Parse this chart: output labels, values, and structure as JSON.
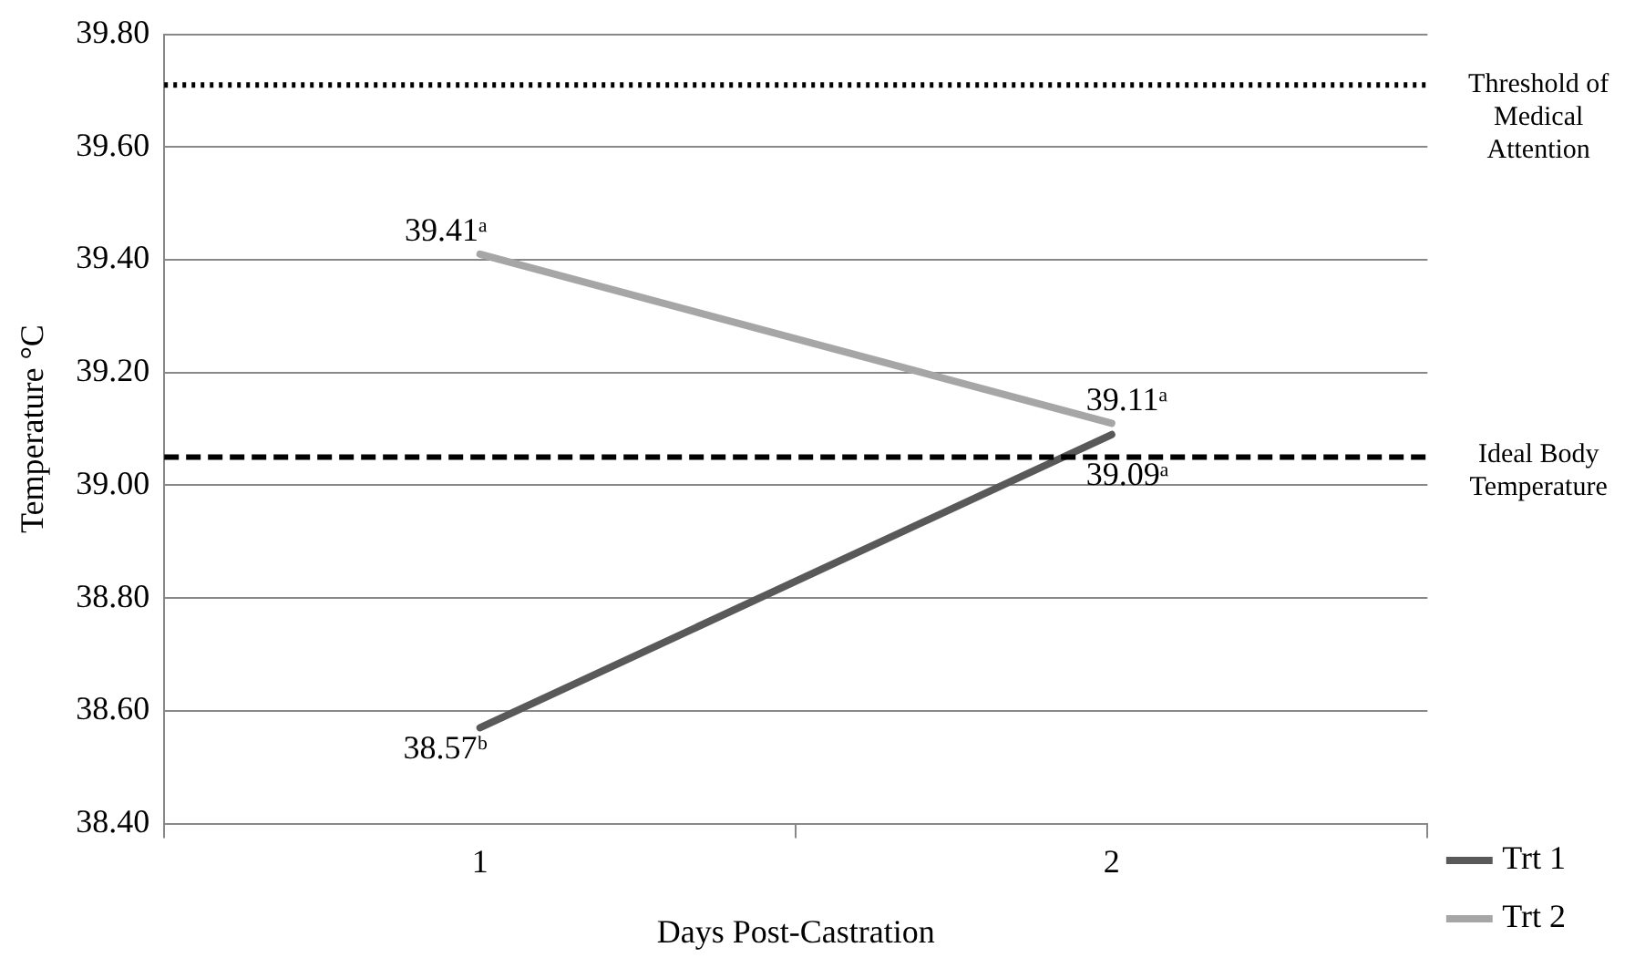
{
  "chart_data": {
    "type": "line",
    "xlabel": "Days Post-Castration",
    "ylabel": "Temperature °C",
    "categories": [
      "1",
      "2"
    ],
    "series": [
      {
        "name": "Trt 1",
        "color": "#595959",
        "values": [
          38.57,
          39.09
        ],
        "value_labels": [
          "38.57ᵇ",
          "39.09ᵃ"
        ]
      },
      {
        "name": "Trt 2",
        "color": "#a6a6a6",
        "values": [
          39.41,
          39.11
        ],
        "value_labels": [
          "39.41ᵃ",
          "39.11ᵃ"
        ]
      }
    ],
    "ylim": [
      38.4,
      39.8
    ],
    "yticks": [
      {
        "value": 38.4,
        "label": "38.40"
      },
      {
        "value": 38.6,
        "label": "38.60"
      },
      {
        "value": 38.8,
        "label": "38.80"
      },
      {
        "value": 39.0,
        "label": "39.00"
      },
      {
        "value": 39.2,
        "label": "39.20"
      },
      {
        "value": 39.4,
        "label": "39.40"
      },
      {
        "value": 39.6,
        "label": "39.60"
      },
      {
        "value": 39.8,
        "label": "39.80"
      }
    ],
    "grid": "y",
    "legend": "right",
    "marker": "none",
    "line_style": "solid",
    "ref_lines": [
      {
        "axis": "y",
        "value": 39.71,
        "label": "Threshold of Medical Attention",
        "color": "#000000",
        "line_style": "dotted"
      },
      {
        "axis": "y",
        "value": 39.05,
        "label": "Ideal Body Temperature",
        "color": "#000000",
        "line_style": "dashed"
      }
    ]
  }
}
